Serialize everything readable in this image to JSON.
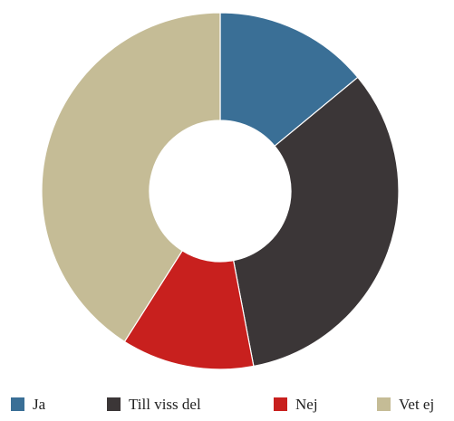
{
  "chart_data": {
    "type": "donut",
    "categories": [
      "Ja",
      "Till viss del",
      "Nej",
      "Vet ej"
    ],
    "values": [
      14,
      33,
      12,
      41
    ],
    "colors": [
      "#3a6f96",
      "#3b3637",
      "#c8201e",
      "#c5bc96"
    ],
    "legend": "bottom"
  }
}
